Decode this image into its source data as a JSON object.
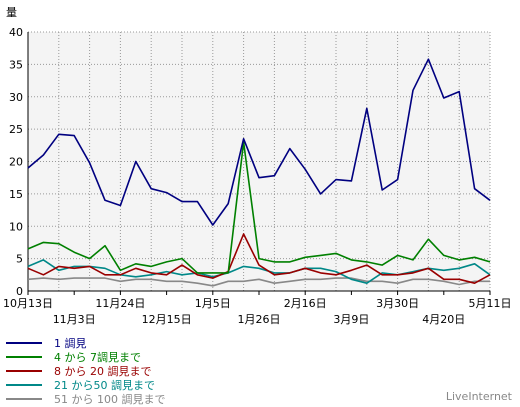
{
  "chart_data": {
    "type": "line",
    "ylabel": "量",
    "ylim": [
      0,
      40
    ],
    "yticks": [
      0,
      5,
      10,
      15,
      20,
      25,
      30,
      35,
      40
    ],
    "grid": true,
    "legend_position": "bottom-left",
    "x_count": 31,
    "x_tick_labels_row1": [
      "10月13日",
      "11月24日",
      "1月5日",
      "2月16日",
      "3月30日",
      "5月11日"
    ],
    "x_tick_labels_row2": [
      "11月3日",
      "12月15日",
      "1月26日",
      "3月9日",
      "4月20日"
    ],
    "series": [
      {
        "name": "1 調見",
        "color": "#000080",
        "values": [
          19,
          21,
          24.2,
          24,
          19.8,
          14,
          13.2,
          20,
          15.8,
          15.2,
          13.8,
          13.8,
          10.2,
          13.5,
          23.5,
          17.5,
          17.8,
          22,
          18.8,
          15,
          17.2,
          17,
          28.2,
          15.6,
          17.2,
          31,
          35.8,
          29.8,
          30.8,
          15.8,
          14
        ]
      },
      {
        "name": "4 から 7調見まで",
        "color": "#008000",
        "values": [
          6.5,
          7.5,
          7.3,
          6,
          5,
          7,
          3.2,
          4.2,
          3.8,
          4.5,
          5,
          2.8,
          2.8,
          2.8,
          23,
          5,
          4.5,
          4.5,
          5.2,
          5.5,
          5.8,
          4.8,
          4.5,
          4,
          5.5,
          4.8,
          8,
          5.5,
          4.8,
          5.2,
          4.5
        ]
      },
      {
        "name": "8 から 20 調見まで",
        "color": "#990000",
        "values": [
          3.5,
          2.5,
          3.8,
          3.5,
          3.8,
          2.5,
          2.5,
          3.5,
          2.8,
          2.5,
          4,
          2.5,
          2,
          3,
          8.8,
          4,
          2.5,
          2.8,
          3.5,
          2.8,
          2.5,
          3.2,
          4,
          2.5,
          2.5,
          2.8,
          3.5,
          1.8,
          1.8,
          1.2,
          2.5
        ]
      },
      {
        "name": "21 から50 調見まで",
        "color": "#008888",
        "values": [
          3.8,
          4.8,
          3.2,
          3.8,
          3.8,
          3.5,
          2.5,
          2.2,
          2.5,
          3,
          2.5,
          2.8,
          2.2,
          2.8,
          3.8,
          3.5,
          2.8,
          2.8,
          3.5,
          3.5,
          3,
          1.8,
          1.2,
          2.8,
          2.5,
          3,
          3.5,
          3.2,
          3.5,
          4.2,
          2.5
        ]
      },
      {
        "name": "51 から 100 調見まで",
        "color": "#888888",
        "values": [
          1.8,
          2,
          1.8,
          2,
          2,
          2,
          1.5,
          1.8,
          1.8,
          1.5,
          1.5,
          1.2,
          0.8,
          1.5,
          1.5,
          1.8,
          1.2,
          1.5,
          1.8,
          1.8,
          2,
          2,
          1.5,
          1.5,
          1.2,
          1.8,
          1.8,
          1.5,
          1,
          1.5,
          1.5
        ]
      }
    ],
    "watermark": "LiveInternet"
  }
}
